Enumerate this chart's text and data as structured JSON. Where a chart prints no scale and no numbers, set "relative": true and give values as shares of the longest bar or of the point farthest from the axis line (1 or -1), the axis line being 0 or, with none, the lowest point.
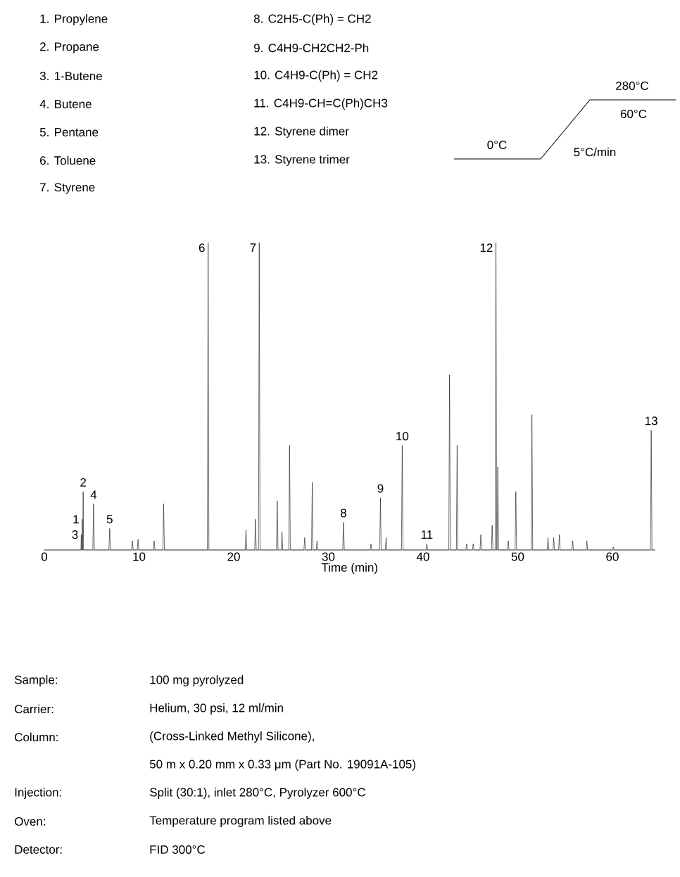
{
  "chart_data": {
    "type": "line",
    "relative": true,
    "xlabel": "Time (min)",
    "xlim": [
      0,
      64.5
    ],
    "xticks": [
      0,
      10,
      20,
      30,
      40,
      50,
      60
    ],
    "color": "#2b2b2b",
    "line_style": "solid",
    "x": [
      0,
      3.86,
      3.9,
      3.94,
      3.96,
      4.0,
      4.04,
      4.06,
      4.1,
      4.14,
      5.12,
      5.2,
      5.28,
      6.82,
      6.9,
      6.98,
      9.22,
      9.3,
      9.38,
      9.82,
      9.9,
      9.98,
      11.52,
      11.6,
      11.68,
      12.52,
      12.6,
      12.68,
      17.22,
      17.3,
      17.38,
      21.22,
      21.3,
      21.38,
      22.22,
      22.3,
      22.38,
      22.62,
      22.7,
      22.78,
      24.52,
      24.6,
      24.68,
      25.02,
      25.1,
      25.18,
      25.82,
      25.9,
      25.98,
      27.42,
      27.5,
      27.58,
      28.22,
      28.3,
      28.38,
      28.72,
      28.8,
      28.88,
      31.52,
      31.6,
      31.68,
      34.42,
      34.5,
      34.58,
      35.42,
      35.5,
      35.58,
      36.02,
      36.1,
      36.18,
      37.72,
      37.8,
      37.88,
      40.32,
      40.4,
      40.48,
      42.72,
      42.8,
      42.88,
      43.52,
      43.6,
      43.68,
      44.52,
      44.6,
      44.68,
      45.22,
      45.3,
      45.38,
      46.02,
      46.1,
      46.18,
      47.22,
      47.3,
      47.38,
      47.62,
      47.7,
      47.78,
      47.82,
      47.9,
      47.98,
      48.92,
      49.0,
      49.08,
      49.72,
      49.8,
      49.88,
      51.42,
      51.5,
      51.58,
      53.12,
      53.2,
      53.28,
      53.72,
      53.8,
      53.88,
      54.32,
      54.4,
      54.48,
      55.72,
      55.8,
      55.88,
      57.22,
      57.3,
      57.38,
      60.02,
      60.1,
      60.18,
      64.02,
      64.1,
      64.18,
      64.5
    ],
    "values": [
      0,
      0,
      0.05,
      0,
      0,
      0.1,
      0,
      0,
      0.19,
      0,
      0,
      0.15,
      0,
      0,
      0.07,
      0,
      0,
      0.03,
      0,
      0,
      0.035,
      0,
      0,
      0.03,
      0,
      0,
      0.15,
      0,
      0,
      1,
      0,
      0,
      0.065,
      0,
      0,
      0.1,
      0,
      0,
      1,
      0,
      0,
      0.16,
      0,
      0,
      0.06,
      0,
      0,
      0.34,
      0,
      0,
      0.04,
      0,
      0,
      0.22,
      0,
      0,
      0.03,
      0,
      0,
      0.09,
      0,
      0,
      0.02,
      0,
      0,
      0.17,
      0,
      0,
      0.04,
      0,
      0,
      0.34,
      0,
      0,
      0.02,
      0,
      0,
      0.57,
      0,
      0,
      0.34,
      0,
      0,
      0.02,
      0,
      0,
      0.02,
      0,
      0,
      0.05,
      0,
      0,
      0.08,
      0,
      0,
      1,
      0,
      0,
      0.27,
      0,
      0,
      0.03,
      0,
      0,
      0.19,
      0,
      0,
      0.44,
      0,
      0,
      0.04,
      0,
      0,
      0.04,
      0,
      0,
      0.05,
      0,
      0,
      0.03,
      0,
      0,
      0.03,
      0,
      0,
      0.01,
      0,
      0,
      0.39,
      0,
      0
    ],
    "annotations": [
      "1. Propylene",
      "2. Propane",
      "3. 1-Butene",
      "4. Butene",
      "5. Pentane",
      "6. Toluene",
      "7. Styrene",
      "8. C2H5-C(Ph) = CH2",
      "9. C4H9-CH2CH2-Ph",
      "10. C4H9-C(Ph) = CH2",
      "11. C4H9-CH=C(Ph)CH3",
      "12. Styrene dimer",
      "13. Styrene trimer",
      "280°C",
      "60°C",
      "0°C",
      "5°C/min",
      {
        "text": "1",
        "x": 4.0,
        "y": 0.1
      },
      {
        "text": "2",
        "x": 4.1,
        "y": 0.19
      },
      {
        "text": "3",
        "x": 3.9,
        "y": 0.05
      },
      {
        "text": "4",
        "x": 5.2,
        "y": 0.15
      },
      {
        "text": "5",
        "x": 6.9,
        "y": 0.07
      },
      {
        "text": "6",
        "x": 17.3,
        "y": 1
      },
      {
        "text": "7",
        "x": 22.7,
        "y": 1
      },
      {
        "text": "8",
        "x": 31.6,
        "y": 0.09
      },
      {
        "text": "9",
        "x": 35.5,
        "y": 0.17
      },
      {
        "text": "10",
        "x": 37.8,
        "y": 0.34
      },
      {
        "text": "11",
        "x": 40.4,
        "y": 0.02
      },
      {
        "text": "12",
        "x": 47.7,
        "y": 1
      },
      {
        "text": "13",
        "x": 64.1,
        "y": 0.39
      },
      "Sample:",
      "100 mg pyrolyzed",
      "Carrier:",
      "Helium, 30 psi, 12 ml/min",
      "Column:",
      "(Cross-Linked Methyl Silicone),",
      "50 m x 0.20 mm x 0.33 μm (Part No. 19091A-105)",
      "Injection:",
      "Split (30:1), inlet 280°C, Pyrolyzer 600°C",
      "Oven:",
      "Temperature program listed above",
      "Detector:",
      "FID 300°C"
    ]
  }
}
